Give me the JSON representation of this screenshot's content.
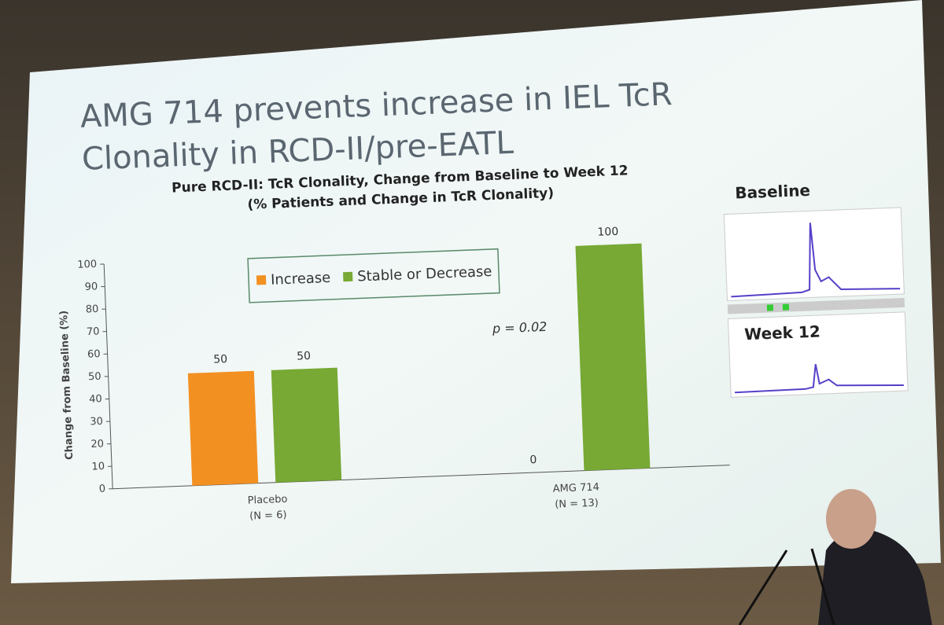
{
  "chart_data": {
    "type": "bar",
    "title": [
      "AMG 714 prevents increase in IEL TcR",
      "Clonality in RCD-II/pre-EATL"
    ],
    "subtitle": [
      "Pure RCD-II: TcR Clonality, Change from Baseline to Week 12",
      "(% Patients and Change in TcR Clonality)"
    ],
    "y_label": "Change from Baseline (%)",
    "categories": [
      "Placebo",
      "AMG 714"
    ],
    "category_notes": [
      "(N = 6)",
      "(N = 13)"
    ],
    "series": [
      {
        "name": "Increase",
        "color": "#f39022",
        "values": [
          50,
          0
        ]
      },
      {
        "name": "Stable or Decrease",
        "color": "#77a934",
        "values": [
          50,
          100
        ]
      }
    ],
    "ylim": [
      0,
      100
    ],
    "yticks": [
      0,
      10,
      20,
      30,
      40,
      50,
      60,
      70,
      80,
      90,
      100
    ],
    "annotation": "p = 0.02",
    "legend": "top",
    "insets": [
      "Baseline",
      "Week 12"
    ]
  }
}
